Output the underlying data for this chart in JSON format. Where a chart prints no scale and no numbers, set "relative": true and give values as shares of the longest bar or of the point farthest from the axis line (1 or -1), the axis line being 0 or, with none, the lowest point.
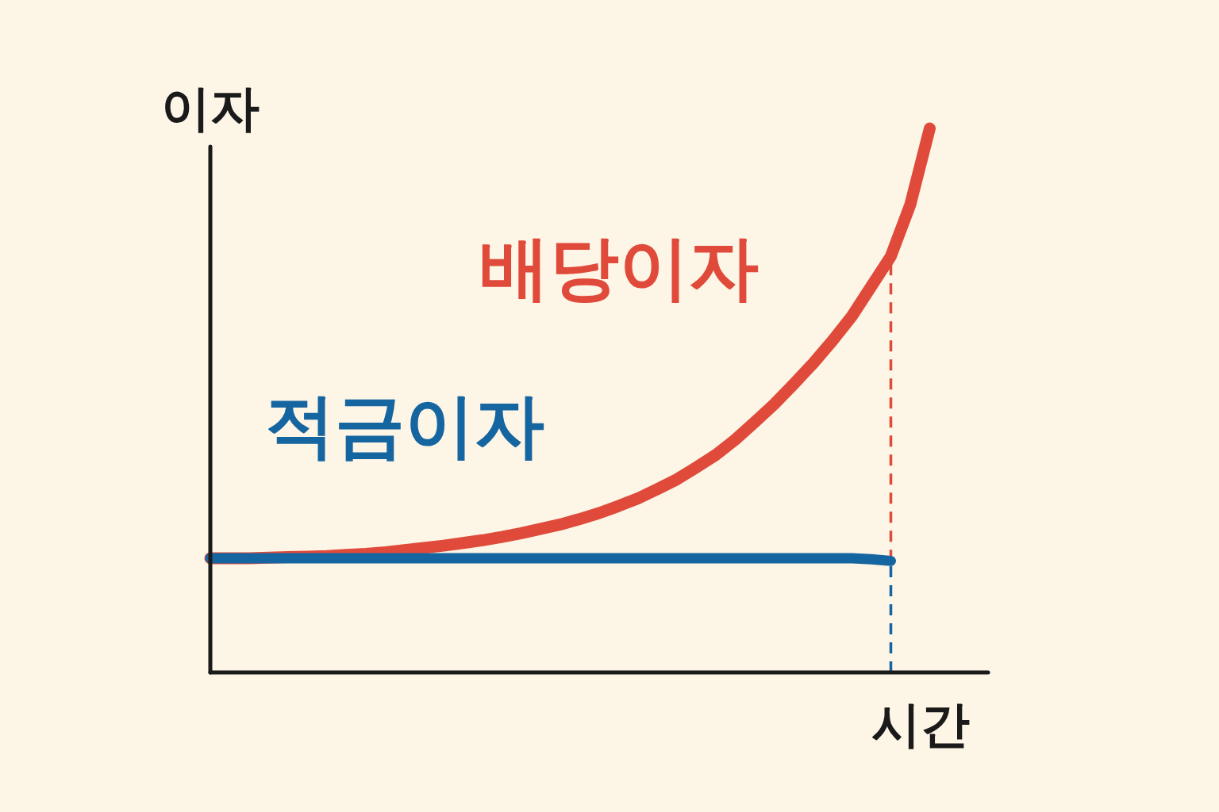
{
  "chart_data": {
    "type": "line",
    "relative": true,
    "xlabel": "시간",
    "ylabel": "이자",
    "categories": [
      null,
      null,
      null,
      null,
      null,
      null,
      null,
      null,
      null,
      null,
      null,
      null,
      null,
      null,
      null,
      null,
      null,
      null,
      null,
      null,
      null,
      null,
      null,
      null,
      null,
      null,
      null,
      null,
      null,
      null,
      null,
      null,
      null,
      null,
      null,
      null,
      null,
      null,
      null,
      null,
      null
    ],
    "series": [
      {
        "name": "배당이자",
        "color": "#e04a3a",
        "values": [
          0.21,
          0.21,
          0.21,
          0.211,
          0.212,
          0.213,
          0.214,
          0.216,
          0.218,
          0.221,
          0.225,
          0.229,
          0.233,
          0.238,
          0.243,
          0.249,
          0.256,
          0.264,
          0.272,
          0.282,
          0.293,
          0.306,
          0.32,
          0.337,
          0.355,
          0.377,
          0.4,
          0.428,
          0.46,
          0.493,
          0.53,
          0.568,
          0.61,
          0.655,
          0.71,
          0.765,
          0.86,
          1.0,
          null,
          null,
          null
        ]
      },
      {
        "name": "적금이자",
        "color": "#1565a0",
        "values": [
          0.21,
          0.21,
          0.21,
          0.21,
          0.21,
          0.21,
          0.21,
          0.21,
          0.21,
          0.21,
          0.21,
          0.21,
          0.21,
          0.21,
          0.21,
          0.21,
          0.21,
          0.21,
          0.21,
          0.21,
          0.21,
          0.21,
          0.21,
          0.21,
          0.21,
          0.21,
          0.21,
          0.21,
          0.21,
          0.21,
          0.21,
          0.21,
          0.21,
          0.21,
          0.208,
          0.205,
          null,
          null,
          null,
          null,
          null
        ]
      }
    ],
    "ref_lines": [
      {
        "axis": "x",
        "line_style": "dashed"
      }
    ]
  }
}
